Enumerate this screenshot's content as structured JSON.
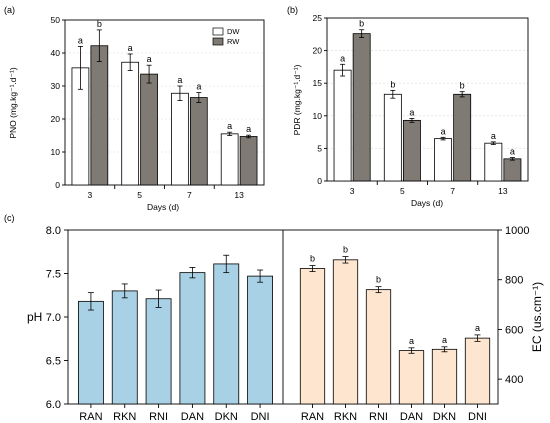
{
  "chart_data": [
    {
      "panel": "(a)",
      "type": "bar",
      "xlabel": "Days (d)",
      "ylabel": "PNO (mg.kg⁻¹.d⁻¹)",
      "ylim": [
        0,
        50
      ],
      "yticks": [
        0,
        10,
        20,
        30,
        40,
        50
      ],
      "categories": [
        "3",
        "5",
        "7",
        "13"
      ],
      "legend_position": "top-right",
      "series": [
        {
          "name": "DW",
          "color": "#ffffff",
          "values": [
            35.5,
            37.2,
            27.8,
            15.5
          ],
          "errors": [
            6.5,
            2.5,
            2.2,
            0.5
          ],
          "labels": [
            "a",
            "a",
            "a",
            "a"
          ]
        },
        {
          "name": "RW",
          "color": "#7f7a74",
          "values": [
            42.2,
            33.6,
            26.5,
            14.7
          ],
          "errors": [
            4.8,
            2.7,
            1.5,
            0.4
          ],
          "labels": [
            "b",
            "a",
            "a",
            "a"
          ]
        }
      ]
    },
    {
      "panel": "(b)",
      "type": "bar",
      "xlabel": "Days (d)",
      "ylabel": "PDR (mg.kg⁻¹.d⁻¹)",
      "ylim": [
        0,
        25
      ],
      "yticks": [
        0,
        5,
        10,
        15,
        20,
        25
      ],
      "categories": [
        "3",
        "5",
        "7",
        "13"
      ],
      "series": [
        {
          "name": "DW",
          "color": "#ffffff",
          "values": [
            17.0,
            13.3,
            6.5,
            5.8
          ],
          "errors": [
            0.9,
            0.6,
            0.2,
            0.2
          ],
          "labels": [
            "a",
            "b",
            "a",
            "a"
          ]
        },
        {
          "name": "RW",
          "color": "#7f7a74",
          "values": [
            22.6,
            9.3,
            13.3,
            3.4
          ],
          "errors": [
            0.6,
            0.3,
            0.4,
            0.2
          ],
          "labels": [
            "b",
            "a",
            "b",
            "a"
          ]
        }
      ]
    },
    {
      "panel": "(c)",
      "type": "bar",
      "categories_left": [
        "RAN",
        "RKN",
        "RNI",
        "DAN",
        "DKN",
        "DNI"
      ],
      "categories_right": [
        "RAN",
        "RKN",
        "RNI",
        "DAN",
        "DKN",
        "DNI"
      ],
      "left_axis": {
        "label": "pH",
        "ylim": [
          6.0,
          8.0
        ],
        "yticks": [
          "6.0",
          "6.5",
          "7.0",
          "7.5",
          "8.0"
        ]
      },
      "right_axis": {
        "label": "EC (us.cm⁻¹)",
        "ylim": [
          300,
          1000
        ],
        "yticks": [
          "400",
          "600",
          "800",
          "1000"
        ]
      },
      "series": [
        {
          "name": "pH",
          "axis": "left",
          "color": "#a9d1e6",
          "values": [
            7.18,
            7.3,
            7.21,
            7.51,
            7.61,
            7.47
          ],
          "errors": [
            0.1,
            0.08,
            0.1,
            0.06,
            0.1,
            0.07
          ]
        },
        {
          "name": "EC",
          "axis": "right",
          "color": "#fde5cf",
          "values": [
            845,
            880,
            760,
            515,
            520,
            565
          ],
          "errors": [
            12,
            13,
            12,
            11,
            10,
            13
          ],
          "labels": [
            "b",
            "b",
            "b",
            "a",
            "a",
            "a"
          ]
        }
      ]
    }
  ]
}
